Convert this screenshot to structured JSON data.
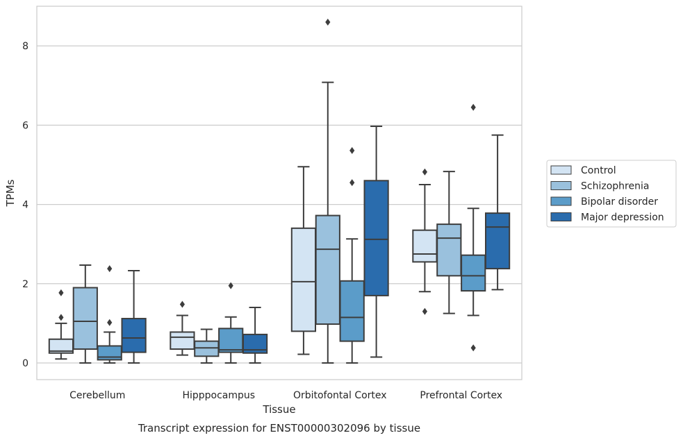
{
  "caption": "Transcript expression for ENST00000302096 by tissue",
  "chart_data": {
    "type": "box",
    "xlabel": "Tissue",
    "ylabel": "TPMs",
    "ylim": [
      -0.42,
      9.0
    ],
    "yticks": [
      0,
      2,
      4,
      6,
      8
    ],
    "grid": "horizontal",
    "legend_position": "right",
    "categories": [
      "Cerebellum",
      "Hipppocampus",
      "Orbitofontal Cortex",
      "Prefrontal Cortex"
    ],
    "series": [
      {
        "name": "Control",
        "color": "#d3e4f3",
        "boxes": [
          {
            "whislo": 0.1,
            "q1": 0.25,
            "med": 0.3,
            "q3": 0.6,
            "whishi": 1.0,
            "fliers": [
              1.15,
              1.77
            ]
          },
          {
            "whislo": 0.2,
            "q1": 0.35,
            "med": 0.65,
            "q3": 0.78,
            "whishi": 1.2,
            "fliers": [
              1.48
            ]
          },
          {
            "whislo": 0.22,
            "q1": 0.8,
            "med": 2.05,
            "q3": 3.4,
            "whishi": 4.95,
            "fliers": []
          },
          {
            "whislo": 1.8,
            "q1": 2.55,
            "med": 2.75,
            "q3": 3.35,
            "whishi": 4.5,
            "fliers": [
              1.3,
              4.82
            ]
          }
        ]
      },
      {
        "name": "Schizophrenia",
        "color": "#9ac1dd",
        "boxes": [
          {
            "whislo": 0.0,
            "q1": 0.35,
            "med": 1.05,
            "q3": 1.9,
            "whishi": 2.47,
            "fliers": []
          },
          {
            "whislo": 0.0,
            "q1": 0.17,
            "med": 0.38,
            "q3": 0.55,
            "whishi": 0.85,
            "fliers": []
          },
          {
            "whislo": 0.0,
            "q1": 0.98,
            "med": 2.87,
            "q3": 3.72,
            "whishi": 7.08,
            "fliers": [
              8.6
            ]
          },
          {
            "whislo": 1.25,
            "q1": 2.2,
            "med": 3.15,
            "q3": 3.5,
            "whishi": 4.83,
            "fliers": []
          }
        ]
      },
      {
        "name": "Bipolar disorder",
        "color": "#5b9cc9",
        "boxes": [
          {
            "whislo": 0.0,
            "q1": 0.08,
            "med": 0.15,
            "q3": 0.43,
            "whishi": 0.78,
            "fliers": [
              1.02,
              2.38
            ]
          },
          {
            "whislo": 0.0,
            "q1": 0.27,
            "med": 0.33,
            "q3": 0.87,
            "whishi": 1.16,
            "fliers": [
              1.95
            ]
          },
          {
            "whislo": 0.0,
            "q1": 0.55,
            "med": 1.15,
            "q3": 2.07,
            "whishi": 3.13,
            "fliers": [
              4.55,
              5.36
            ]
          },
          {
            "whislo": 1.2,
            "q1": 1.82,
            "med": 2.2,
            "q3": 2.72,
            "whishi": 3.9,
            "fliers": [
              0.38,
              6.45
            ]
          }
        ]
      },
      {
        "name": "Major depression",
        "color": "#2a6cad",
        "boxes": [
          {
            "whislo": 0.0,
            "q1": 0.27,
            "med": 0.63,
            "q3": 1.12,
            "whishi": 2.33,
            "fliers": []
          },
          {
            "whislo": 0.0,
            "q1": 0.25,
            "med": 0.33,
            "q3": 0.72,
            "whishi": 1.4,
            "fliers": []
          },
          {
            "whislo": 0.15,
            "q1": 1.7,
            "med": 3.12,
            "q3": 4.6,
            "whishi": 5.97,
            "fliers": []
          },
          {
            "whislo": 1.85,
            "q1": 2.38,
            "med": 3.43,
            "q3": 3.78,
            "whishi": 5.75,
            "fliers": []
          }
        ]
      }
    ]
  }
}
